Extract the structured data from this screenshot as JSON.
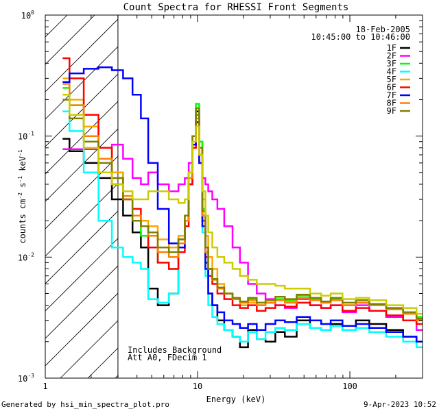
{
  "chart_data": {
    "type": "line",
    "title": "Count Spectra for RHESSI Front Segments",
    "xlabel": "Energy (keV)",
    "ylabel": {
      "text": "counts cm",
      "e1": "-2",
      "mid": " s",
      "e2": "-1",
      "end": " keV",
      "e3": "-1"
    },
    "xscale": "log",
    "yscale": "log",
    "xlim": [
      1,
      300
    ],
    "ylim": [
      0.001,
      1
    ],
    "x_ticks": [
      {
        "v": 1,
        "label": "1"
      },
      {
        "v": 10,
        "label": "10"
      },
      {
        "v": 100,
        "label": "100"
      }
    ],
    "y_ticks": [
      {
        "v": 1,
        "base": "10",
        "exp": "0"
      },
      {
        "v": 0.1,
        "base": "10",
        "exp": "-1"
      },
      {
        "v": 0.01,
        "base": "10",
        "exp": "-2"
      },
      {
        "v": 0.001,
        "base": "10",
        "exp": "-3"
      }
    ],
    "shaded_below_energy": 3,
    "date": "18-Feb-2005",
    "time_range": "10:45:00 to 10:46:00",
    "notes": [
      "Includes Background",
      "Att A0, FDecim 1"
    ],
    "x": [
      1.3,
      1.6,
      2.0,
      2.5,
      3.0,
      3.5,
      4.0,
      4.5,
      5.0,
      6.0,
      7.0,
      8.0,
      8.5,
      9.0,
      9.5,
      10.0,
      10.5,
      11.0,
      11.5,
      12.0,
      13.0,
      14.0,
      16.0,
      18.0,
      20.0,
      23.0,
      26.0,
      30.0,
      35.0,
      40.0,
      50.0,
      60.0,
      70.0,
      80.0,
      100.0,
      120.0,
      150.0,
      200.0,
      250.0,
      300.0
    ],
    "series": [
      {
        "name": "1F",
        "color": "#000000",
        "values": [
          0.095,
          0.075,
          0.06,
          0.045,
          0.03,
          0.022,
          0.016,
          0.012,
          0.0055,
          0.004,
          0.005,
          0.014,
          0.02,
          0.04,
          0.08,
          0.16,
          0.07,
          0.02,
          0.009,
          0.005,
          0.004,
          0.003,
          0.0025,
          0.0022,
          0.0018,
          0.0025,
          0.0021,
          0.002,
          0.0024,
          0.0022,
          0.003,
          0.0026,
          0.0025,
          0.0028,
          0.0025,
          0.003,
          0.0028,
          0.0025,
          0.0022,
          0.002
        ]
      },
      {
        "name": "2F",
        "color": "#ff00ff",
        "values": [
          0.078,
          0.078,
          0.078,
          0.08,
          0.085,
          0.065,
          0.045,
          0.04,
          0.05,
          0.04,
          0.035,
          0.04,
          0.045,
          0.06,
          0.08,
          0.15,
          0.09,
          0.045,
          0.04,
          0.035,
          0.03,
          0.025,
          0.018,
          0.012,
          0.009,
          0.006,
          0.005,
          0.0045,
          0.004,
          0.0038,
          0.0045,
          0.004,
          0.0038,
          0.004,
          0.0035,
          0.004,
          0.0036,
          0.0032,
          0.003,
          0.0025
        ]
      },
      {
        "name": "3F",
        "color": "#00ff00",
        "values": [
          0.25,
          0.18,
          0.12,
          0.08,
          0.05,
          0.035,
          0.022,
          0.015,
          0.012,
          0.009,
          0.008,
          0.012,
          0.02,
          0.05,
          0.1,
          0.185,
          0.09,
          0.025,
          0.012,
          0.008,
          0.0065,
          0.0055,
          0.005,
          0.0045,
          0.0042,
          0.0045,
          0.004,
          0.0042,
          0.0045,
          0.0044,
          0.0048,
          0.0045,
          0.0042,
          0.0045,
          0.004,
          0.0042,
          0.004,
          0.0038,
          0.0035,
          0.0032
        ]
      },
      {
        "name": "4F",
        "color": "#00ffff",
        "values": [
          0.16,
          0.11,
          0.05,
          0.02,
          0.012,
          0.01,
          0.009,
          0.008,
          0.0045,
          0.0042,
          0.005,
          0.012,
          0.02,
          0.04,
          0.08,
          0.14,
          0.06,
          0.016,
          0.007,
          0.004,
          0.0032,
          0.0028,
          0.0025,
          0.0022,
          0.002,
          0.0024,
          0.0021,
          0.0024,
          0.0026,
          0.0025,
          0.0028,
          0.0026,
          0.0025,
          0.0027,
          0.0025,
          0.0026,
          0.0024,
          0.0022,
          0.002,
          0.0018
        ]
      },
      {
        "name": "5F",
        "color": "#ffa500",
        "values": [
          0.3,
          0.2,
          0.12,
          0.08,
          0.05,
          0.03,
          0.022,
          0.02,
          0.018,
          0.014,
          0.012,
          0.015,
          0.022,
          0.045,
          0.09,
          0.13,
          0.08,
          0.03,
          0.015,
          0.01,
          0.008,
          0.006,
          0.005,
          0.0045,
          0.004,
          0.0042,
          0.004,
          0.0042,
          0.0044,
          0.0043,
          0.0046,
          0.0044,
          0.0042,
          0.0044,
          0.004,
          0.0042,
          0.004,
          0.0037,
          0.0034,
          0.003
        ]
      },
      {
        "name": "6F",
        "color": "#ff0000",
        "values": [
          0.44,
          0.3,
          0.15,
          0.08,
          0.04,
          0.03,
          0.025,
          0.018,
          0.012,
          0.009,
          0.008,
          0.011,
          0.018,
          0.04,
          0.08,
          0.13,
          0.06,
          0.02,
          0.01,
          0.007,
          0.006,
          0.005,
          0.0045,
          0.004,
          0.0038,
          0.004,
          0.0036,
          0.0038,
          0.004,
          0.0039,
          0.0042,
          0.004,
          0.0038,
          0.004,
          0.0036,
          0.0038,
          0.0036,
          0.0033,
          0.003,
          0.0028
        ]
      },
      {
        "name": "7F",
        "color": "#0000ff",
        "values": [
          0.28,
          0.33,
          0.36,
          0.37,
          0.35,
          0.3,
          0.22,
          0.14,
          0.06,
          0.025,
          0.013,
          0.012,
          0.02,
          0.045,
          0.085,
          0.13,
          0.06,
          0.018,
          0.008,
          0.005,
          0.004,
          0.0035,
          0.003,
          0.0028,
          0.0026,
          0.0028,
          0.0025,
          0.0028,
          0.003,
          0.0029,
          0.0032,
          0.003,
          0.0028,
          0.003,
          0.0027,
          0.0028,
          0.0026,
          0.0024,
          0.0022,
          0.002
        ]
      },
      {
        "name": "8F",
        "color": "#ff8000",
        "values": [
          0.27,
          0.18,
          0.1,
          0.065,
          0.045,
          0.032,
          0.022,
          0.018,
          0.015,
          0.011,
          0.01,
          0.013,
          0.02,
          0.045,
          0.09,
          0.14,
          0.07,
          0.022,
          0.011,
          0.008,
          0.0065,
          0.0055,
          0.005,
          0.0045,
          0.0042,
          0.0044,
          0.004,
          0.0042,
          0.0044,
          0.0042,
          0.0046,
          0.0044,
          0.0042,
          0.0044,
          0.004,
          0.0042,
          0.004,
          0.0037,
          0.0034,
          0.003
        ]
      },
      {
        "name": "9F",
        "color": "#808000",
        "values": [
          0.2,
          0.14,
          0.09,
          0.06,
          0.045,
          0.03,
          0.02,
          0.018,
          0.016,
          0.012,
          0.011,
          0.014,
          0.022,
          0.05,
          0.1,
          0.17,
          0.08,
          0.024,
          0.012,
          0.008,
          0.0066,
          0.0056,
          0.005,
          0.0046,
          0.0043,
          0.0046,
          0.0042,
          0.0044,
          0.0047,
          0.0045,
          0.0049,
          0.0046,
          0.0043,
          0.0046,
          0.0042,
          0.0044,
          0.0041,
          0.0038,
          0.0035,
          0.0031
        ]
      },
      {
        "name": "",
        "color": "#cccc00",
        "values": [
          0.22,
          0.15,
          0.08,
          0.05,
          0.04,
          0.035,
          0.03,
          0.03,
          0.035,
          0.035,
          0.03,
          0.028,
          0.03,
          0.05,
          0.09,
          0.12,
          0.07,
          0.035,
          0.022,
          0.016,
          0.012,
          0.01,
          0.009,
          0.008,
          0.007,
          0.0065,
          0.006,
          0.006,
          0.0058,
          0.0055,
          0.0055,
          0.005,
          0.0048,
          0.005,
          0.0045,
          0.0046,
          0.0044,
          0.004,
          0.0038,
          0.0034
        ]
      }
    ]
  },
  "footer": {
    "generator": "Generated by hsi_min_spectra_plot.pro",
    "timestamp": "9-Apr-2023 10:52"
  }
}
